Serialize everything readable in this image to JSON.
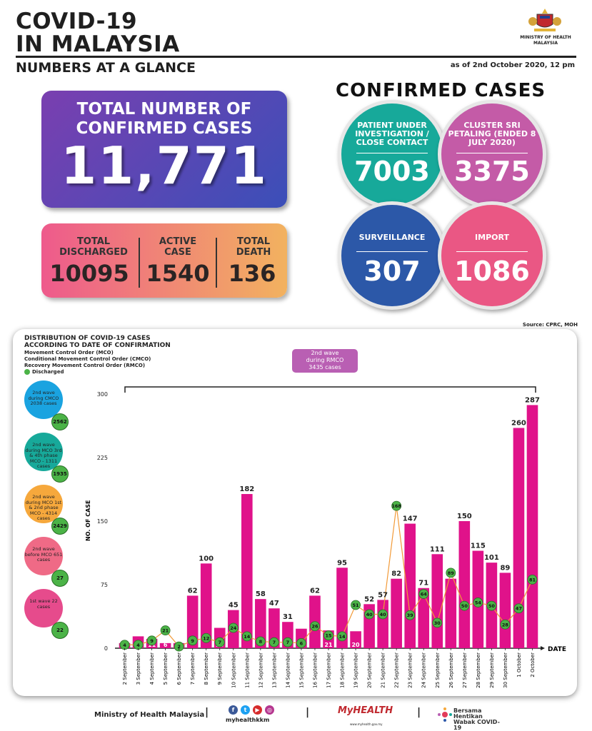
{
  "header": {
    "title_line1": "COVID-19",
    "title_line2": "IN MALAYSIA",
    "subtitle": "NUMBERS AT A GLANCE",
    "as_of": "as of 2nd October 2020, 12 pm",
    "ministry": "MINISTRY OF HEALTH MALAYSIA"
  },
  "total": {
    "label": "TOTAL NUMBER OF CONFIRMED CASES",
    "value": "11,771"
  },
  "stats": [
    {
      "label": "TOTAL DISCHARGED",
      "value": "10095"
    },
    {
      "label": "ACTIVE CASE",
      "value": "1540"
    },
    {
      "label": "TOTAL DEATH",
      "value": "136"
    }
  ],
  "confirmed": {
    "title": "CONFIRMED CASES",
    "bubbles": [
      {
        "label": "PATIENT UNDER INVESTIGATION / CLOSE CONTACT",
        "value": "7003",
        "color": "#17a99a"
      },
      {
        "label": "CLUSTER SRI PETALING (ENDED 8 JULY 2020)",
        "value": "3375",
        "color": "#c45ba7"
      },
      {
        "label": "SURVEILLANCE",
        "value": "307",
        "color": "#2c58a8"
      },
      {
        "label": "IMPORT",
        "value": "1086",
        "color": "#ea5784"
      }
    ]
  },
  "source": "Source: CPRC, MOH",
  "legend": {
    "title_line1": "DISTRIBUTION OF COVID-19 CASES",
    "title_line2": "ACCORDING TO DATE OF CONFIRMATION",
    "mco": "Movement Control Order (MCO)",
    "cmco": "Conditional Movement Control Order (CMCO)",
    "rmco": "Recovery Movement Control Order (RMCO)",
    "discharged": "Discharged"
  },
  "rmco_box": {
    "line1": "2nd wave",
    "line2": "during RMCO",
    "line3": "3435 cases"
  },
  "waves": [
    {
      "text": "2nd wave during CMCO 2038 cases",
      "count": "2562",
      "color": "#1aa3e0"
    },
    {
      "text": "2nd wave during MCO 3rd & 4th phase MCO - 1311 cases",
      "count": "1935",
      "color": "#17a99a"
    },
    {
      "text": "2nd wave during MCO 1st & 2nd phase MCO - 4314 cases",
      "count": "2429",
      "color": "#f6a83c"
    },
    {
      "text": "2nd wave before MCO 651 cases",
      "count": "27",
      "color": "#ef6a86"
    },
    {
      "text": "1st wave 22 cases",
      "count": "22",
      "color": "#e64b8c"
    }
  ],
  "chart_data": {
    "type": "bar",
    "ylabel": "NO. OF CASE",
    "xlabel": "DATE",
    "ylim": [
      0,
      300
    ],
    "yticks": [
      0,
      75,
      150,
      225,
      300
    ],
    "categories": [
      "2 September",
      "3 September",
      "4 September",
      "5 September",
      "6 September",
      "7 September",
      "8 September",
      "9 September",
      "10 September",
      "11 September",
      "12 September",
      "13 September",
      "14 September",
      "15 September",
      "16 September",
      "17 September",
      "18 September",
      "19 September",
      "20 September",
      "21 September",
      "22 September",
      "23 September",
      "24 September",
      "25 September",
      "26 September",
      "27 September",
      "28 September",
      "29 September",
      "30 September",
      "1 October",
      "2 October"
    ],
    "series": [
      {
        "name": "Confirmed cases",
        "values": [
          6,
          14,
          11,
          6,
          6,
          62,
          100,
          24,
          45,
          182,
          58,
          47,
          31,
          23,
          62,
          21,
          95,
          20,
          52,
          57,
          82,
          147,
          71,
          111,
          82,
          150,
          115,
          101,
          89,
          260,
          287
        ],
        "color": "#e0128a"
      },
      {
        "name": "Discharged",
        "values": [
          4,
          4,
          9,
          21,
          2,
          9,
          12,
          7,
          24,
          14,
          8,
          7,
          7,
          6,
          26,
          15,
          14,
          51,
          40,
          40,
          168,
          39,
          64,
          30,
          89,
          50,
          54,
          50,
          28,
          47,
          81
        ],
        "color": "#4bb347"
      }
    ]
  },
  "footer": {
    "ministry": "Ministry of Health Malaysia",
    "handle": "myhealthkkm",
    "myhealth": "MyHEALTH",
    "myhealth_url": "www.myhealth.gov.my",
    "bersama": "Bersama Hentikan Wabak COVID-19"
  }
}
